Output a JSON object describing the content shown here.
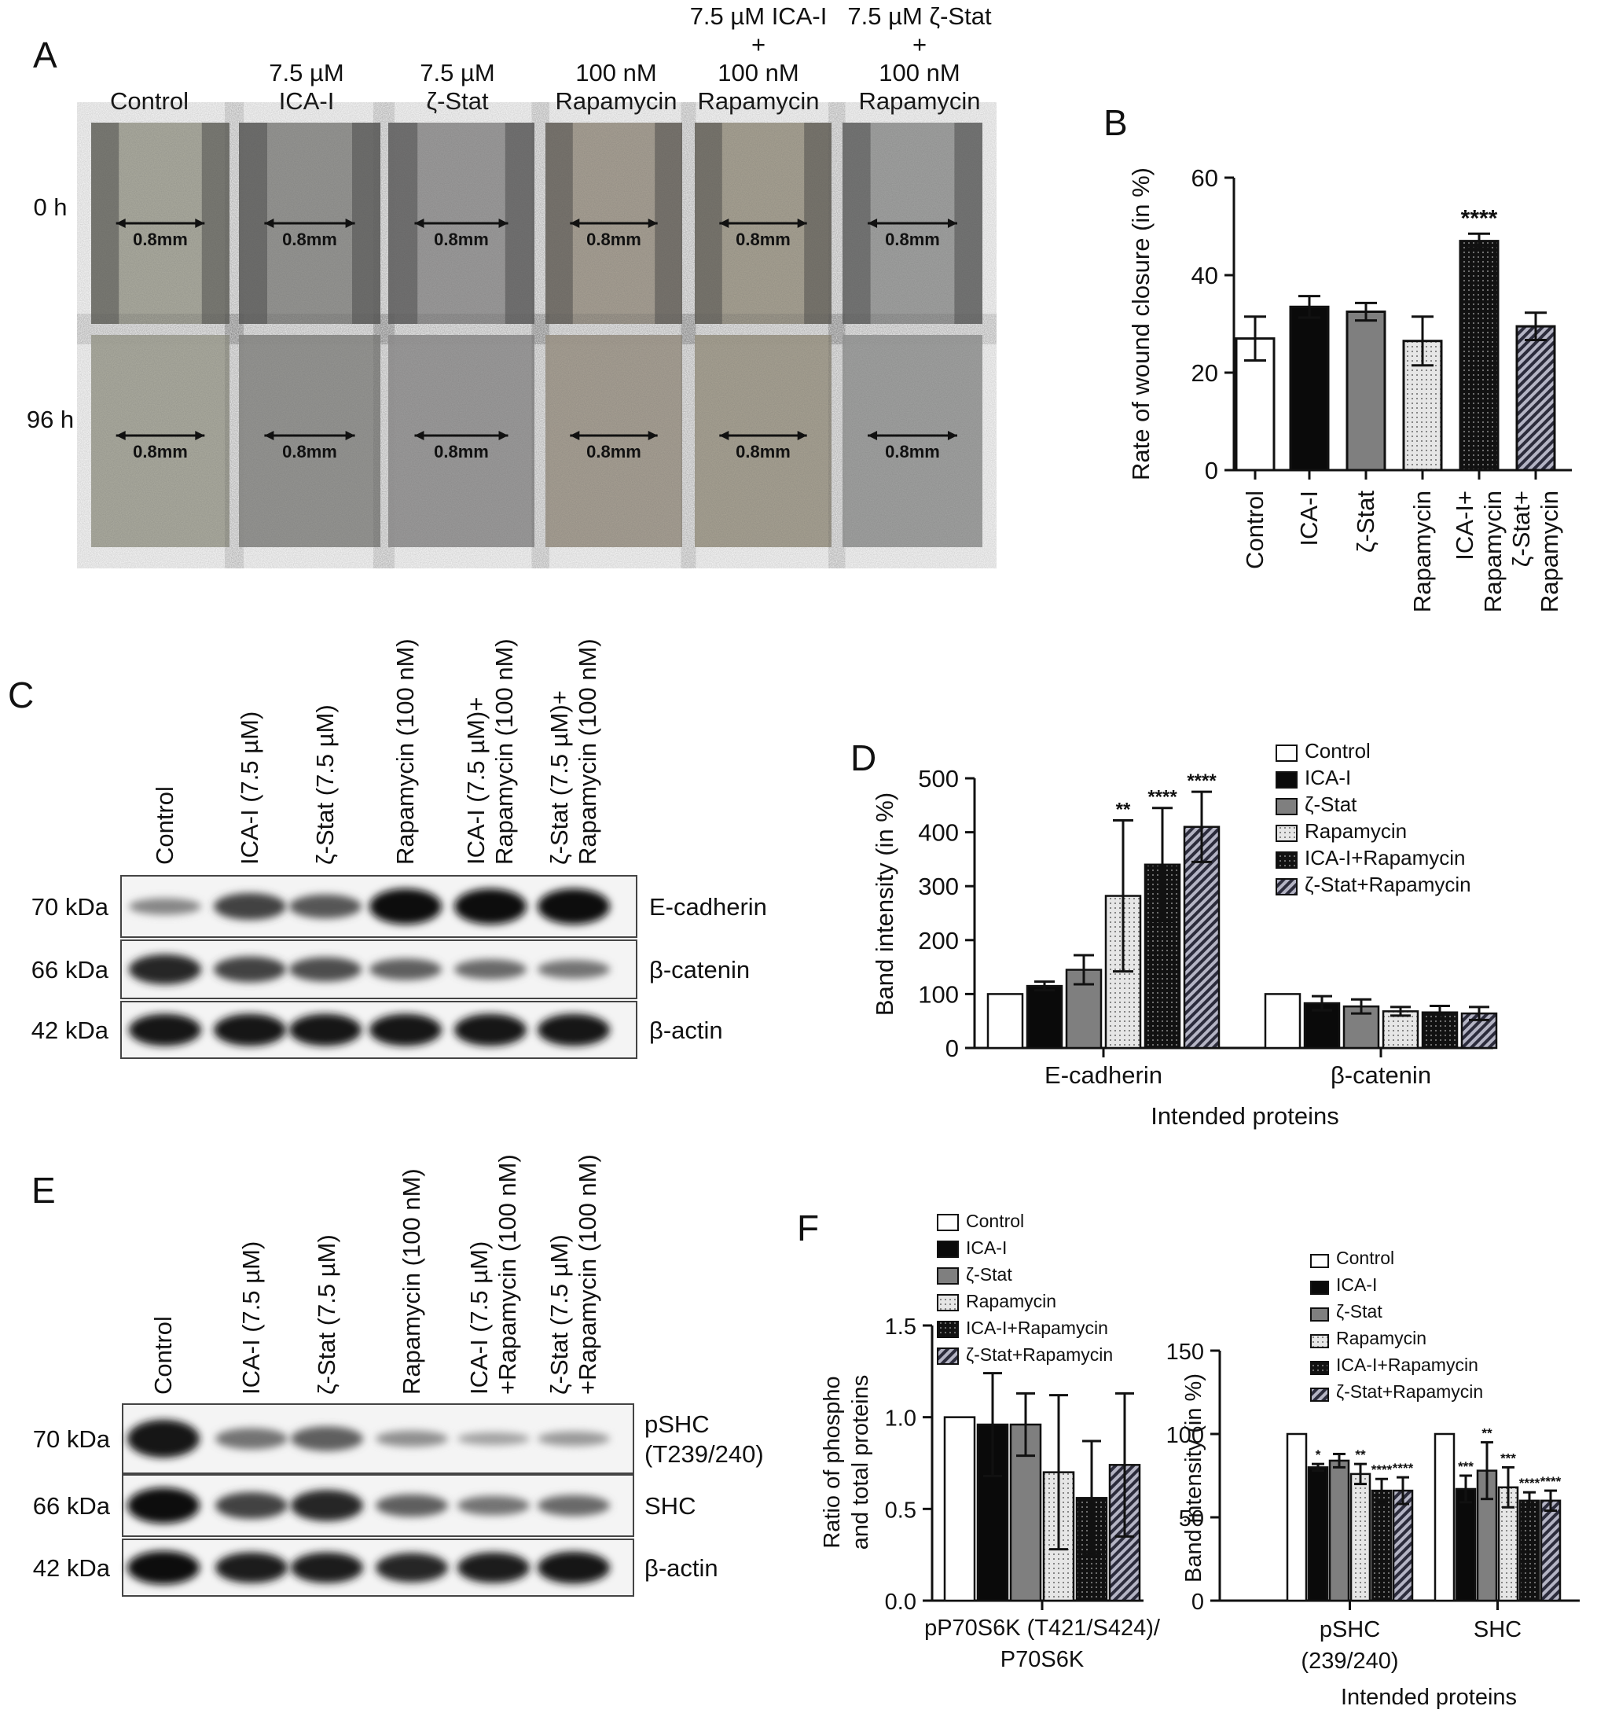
{
  "panel_letters": {
    "A": "A",
    "B": "B",
    "C": "C",
    "D": "D",
    "E": "E",
    "F": "F"
  },
  "panel_a": {
    "columns": [
      {
        "lines": [
          "Control"
        ]
      },
      {
        "lines": [
          "7.5 µM",
          "ICA-I"
        ]
      },
      {
        "lines": [
          "7.5 µM",
          "ζ-Stat"
        ]
      },
      {
        "lines": [
          "100 nM",
          "Rapamycin"
        ]
      },
      {
        "lines": [
          "7.5 µM ICA-I",
          "+",
          "100 nM",
          "Rapamycin"
        ]
      },
      {
        "lines": [
          "7.5 µM ζ-Stat",
          "+",
          "100 nM",
          "Rapamycin"
        ]
      }
    ],
    "rows": [
      "0 h",
      "96 h"
    ],
    "scale_label": "0.8mm"
  },
  "chart_data": [
    {
      "panel": "B",
      "type": "bar",
      "categories": [
        "Control",
        "ICA-I",
        "ζ-Stat",
        "Rapamycin",
        "ICA-I+ Rapamycin",
        "ζ-Stat+ Rapamycin"
      ],
      "values": [
        27,
        33.5,
        32.5,
        26.5,
        47,
        29.5
      ],
      "errors": [
        4.5,
        2.2,
        1.8,
        5.0,
        1.5,
        2.8
      ],
      "significance": [
        "",
        "",
        "",
        "",
        "****",
        ""
      ],
      "ylabel": "Rate of wound closure (in %)",
      "ylim": [
        0,
        60
      ],
      "yticks": [
        0,
        20,
        40,
        60
      ]
    },
    {
      "panel": "D",
      "type": "bar",
      "categories": [
        "E-cadherin",
        "β-catenin"
      ],
      "series": [
        {
          "name": "Control",
          "values": [
            100,
            100
          ],
          "errors": [
            0,
            0
          ],
          "significance": [
            "",
            ""
          ]
        },
        {
          "name": "ICA-I",
          "values": [
            115,
            83
          ],
          "errors": [
            8,
            13
          ],
          "significance": [
            "",
            ""
          ]
        },
        {
          "name": "ζ-Stat",
          "values": [
            145,
            77
          ],
          "errors": [
            27,
            13
          ],
          "significance": [
            "",
            ""
          ]
        },
        {
          "name": "Rapamycin",
          "values": [
            282,
            68
          ],
          "errors": [
            140,
            8
          ],
          "significance": [
            "**",
            ""
          ]
        },
        {
          "name": "ICA-I+Rapamycin",
          "values": [
            340,
            66
          ],
          "errors": [
            105,
            12
          ],
          "significance": [
            "****",
            ""
          ]
        },
        {
          "name": "ζ-Stat+Rapamycin",
          "values": [
            410,
            64
          ],
          "errors": [
            65,
            12
          ],
          "significance": [
            "****",
            ""
          ]
        }
      ],
      "xlabel": "Intended proteins",
      "ylabel": "Band  intensity (in %)",
      "ylim": [
        0,
        500
      ],
      "yticks": [
        0,
        100,
        200,
        300,
        400,
        500
      ],
      "legend": "top-right"
    },
    {
      "panel": "F-left",
      "type": "bar",
      "categories": [
        "pP70S6K (T421/S424)/ P70S6K"
      ],
      "series": [
        {
          "name": "Control",
          "values": [
            1.0
          ],
          "errors": [
            0
          ]
        },
        {
          "name": "ICA-I",
          "values": [
            0.96
          ],
          "errors": [
            0.28
          ]
        },
        {
          "name": "ζ-Stat",
          "values": [
            0.96
          ],
          "errors": [
            0.17
          ]
        },
        {
          "name": "Rapamycin",
          "values": [
            0.7
          ],
          "errors": [
            0.42
          ]
        },
        {
          "name": "ICA-I+Rapamycin",
          "values": [
            0.56
          ],
          "errors": [
            0.31
          ]
        },
        {
          "name": "ζ-Stat+Rapamycin",
          "values": [
            0.74
          ],
          "errors": [
            0.39
          ]
        }
      ],
      "ylabel": "Ratio of phospho and total proteins",
      "ylim": [
        0,
        1.5
      ],
      "yticks": [
        "0.0",
        "0.5",
        "1.0",
        "1.5"
      ],
      "legend": "top"
    },
    {
      "panel": "F-right",
      "type": "bar",
      "categories": [
        "pSHC (239/240)",
        "SHC"
      ],
      "series": [
        {
          "name": "Control",
          "values": [
            100,
            100
          ],
          "errors": [
            0,
            0
          ],
          "significance": [
            "",
            ""
          ]
        },
        {
          "name": "ICA-I",
          "values": [
            80,
            67
          ],
          "errors": [
            2,
            8
          ],
          "significance": [
            "*",
            "***"
          ]
        },
        {
          "name": "ζ-Stat",
          "values": [
            84,
            78
          ],
          "errors": [
            4,
            17
          ],
          "significance": [
            "",
            "**"
          ]
        },
        {
          "name": "Rapamycin",
          "values": [
            76,
            68
          ],
          "errors": [
            6,
            12
          ],
          "significance": [
            "**",
            "***"
          ]
        },
        {
          "name": "ICA-I+Rapamycin",
          "values": [
            66,
            60
          ],
          "errors": [
            7,
            5
          ],
          "significance": [
            "****",
            "****"
          ]
        },
        {
          "name": "ζ-Stat+Rapamycin",
          "values": [
            66,
            60
          ],
          "errors": [
            8,
            6
          ],
          "significance": [
            "****",
            "****"
          ]
        }
      ],
      "xlabel": "Intended proteins",
      "ylabel": "Band intensity (in %)",
      "ylim": [
        0,
        150
      ],
      "yticks": [
        0,
        50,
        100,
        150
      ],
      "legend": "top-right"
    }
  ],
  "panel_c": {
    "lanes": [
      "Control",
      "ICA-I (7.5 µM)",
      "ζ-Stat (7.5 µM)",
      "Rapamycin (100 nM)",
      "ICA-I (7.5 µM)+ Rapamycin (100 nM)",
      "ζ-Stat (7.5 µM)+ Rapamycin (100 nM)"
    ],
    "blots": [
      {
        "kda": "70 kDa",
        "protein": "E-cadherin",
        "intensity": [
          0.35,
          0.7,
          0.6,
          1.0,
          1.0,
          1.0
        ]
      },
      {
        "kda": "66 kDa",
        "protein": "β-catenin",
        "intensity": [
          0.85,
          0.7,
          0.65,
          0.55,
          0.5,
          0.45
        ]
      },
      {
        "kda": "42 kDa",
        "protein": "β-actin",
        "intensity": [
          0.95,
          0.95,
          0.95,
          0.95,
          0.95,
          0.95
        ]
      }
    ]
  },
  "panel_e": {
    "lanes": [
      "Control",
      "ICA-I (7.5 µM)",
      "ζ-Stat (7.5 µM)",
      "Rapamycin (100 nM)",
      "ICA-I (7.5 µM) +Rapamycin (100 nM)",
      "ζ-Stat (7.5 µM) +Rapamycin (100 nM)"
    ],
    "blots": [
      {
        "kda": "70 kDa",
        "protein": "pSHC (T239/240)",
        "intensity": [
          0.95,
          0.45,
          0.55,
          0.3,
          0.2,
          0.25
        ]
      },
      {
        "kda": "66 kDa",
        "protein": "SHC",
        "intensity": [
          1.0,
          0.7,
          0.85,
          0.55,
          0.45,
          0.5
        ]
      },
      {
        "kda": "42 kDa",
        "protein": "β-actin",
        "intensity": [
          1.0,
          0.9,
          0.9,
          0.85,
          0.9,
          0.95
        ]
      }
    ]
  },
  "colors": {
    "Control": "#ffffff",
    "ICA-I": "#0a0a0a",
    "ζ-Stat": "#7f7f7f",
    "Rapamycin": "#e2e2e2",
    "ICA-I+Rapamycin": "#141414",
    "ζ-Stat+Rapamycin": "#9a9aac"
  }
}
